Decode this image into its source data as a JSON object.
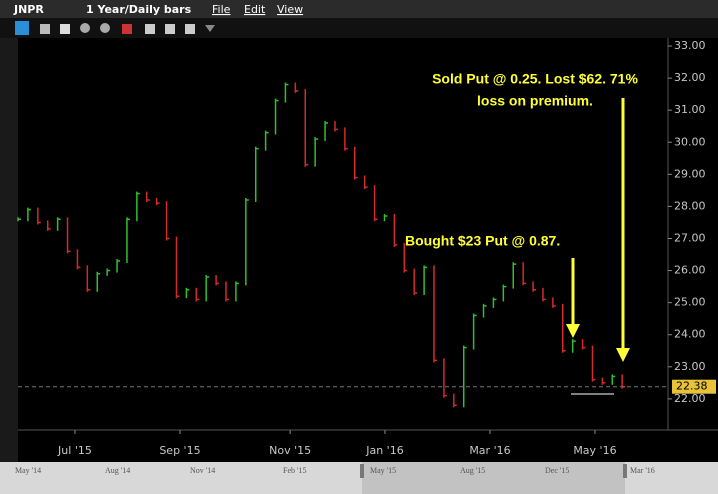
{
  "toolbar": {
    "symbol": "JNPR",
    "period": "1 Year/Daily bars",
    "menus": [
      "File",
      "Edit",
      "View"
    ]
  },
  "chart_data": {
    "type": "ohlc",
    "x": [
      0,
      4,
      8,
      12,
      16,
      20,
      24,
      28,
      32,
      36,
      40,
      44,
      48,
      52,
      56,
      60,
      64,
      68,
      72,
      76,
      80,
      84,
      88,
      92,
      96,
      100,
      104,
      108,
      112,
      116,
      120,
      124,
      128,
      132,
      136,
      140,
      144,
      148,
      152,
      156,
      160,
      164,
      168,
      172,
      176,
      180,
      184,
      188,
      192,
      196,
      200,
      204,
      208,
      212,
      216,
      220,
      224,
      228,
      232,
      236,
      240,
      244
    ],
    "values": [
      27.6,
      27.9,
      27.5,
      27.3,
      27.6,
      26.6,
      26.1,
      25.4,
      25.9,
      26.0,
      26.3,
      27.6,
      28.4,
      28.2,
      28.1,
      27.0,
      25.2,
      25.4,
      25.1,
      25.8,
      25.6,
      25.1,
      25.6,
      28.2,
      29.8,
      30.3,
      31.3,
      31.8,
      31.6,
      29.3,
      30.1,
      30.6,
      30.4,
      29.8,
      28.9,
      28.6,
      27.6,
      27.7,
      26.8,
      26.0,
      25.3,
      26.1,
      23.2,
      22.1,
      21.8,
      23.6,
      24.6,
      24.9,
      25.1,
      25.5,
      26.2,
      25.6,
      25.4,
      25.1,
      24.9,
      23.5,
      23.8,
      23.6,
      22.6,
      22.5,
      22.7,
      22.38
    ],
    "up_color": "#2fbf2f",
    "down_color": "#d42a2a",
    "xlim": [
      0,
      262.5
    ],
    "xticks": [
      {
        "value": 23,
        "label": "Jul '15"
      },
      {
        "value": 65.4,
        "label": "Sep '15"
      },
      {
        "value": 109.9,
        "label": "Nov '15"
      },
      {
        "value": 148.2,
        "label": "Jan '16"
      },
      {
        "value": 190.6,
        "label": "Mar '16"
      },
      {
        "value": 233,
        "label": "May '16"
      }
    ],
    "ylim": [
      21.03,
      33.25
    ],
    "yticks": [
      {
        "value": 22,
        "label": "22.00"
      },
      {
        "value": 23,
        "label": "23.00"
      },
      {
        "value": 24,
        "label": "24.00"
      },
      {
        "value": 25,
        "label": "25.00"
      },
      {
        "value": 26,
        "label": "26.00"
      },
      {
        "value": 27,
        "label": "27.00"
      },
      {
        "value": 28,
        "label": "28.00"
      },
      {
        "value": 29,
        "label": "29.00"
      },
      {
        "value": 30,
        "label": "30.00"
      },
      {
        "value": 31,
        "label": "31.00"
      },
      {
        "value": 32,
        "label": "32.00"
      },
      {
        "value": 33,
        "label": "33.00"
      }
    ],
    "last_value": 22.38,
    "annotations": [
      {
        "lines": [
          "Sold Put @ 0.25. Lost $62. 71%",
          "loss on premium."
        ]
      },
      {
        "lines": [
          "Bought $23 Put @ 0.87."
        ]
      }
    ]
  },
  "navigator": {
    "labels": [
      "May '14",
      "Aug '14",
      "Nov '14",
      "Feb '15",
      "May '15",
      "Aug '15",
      "Dec '15",
      "Mar '16"
    ]
  }
}
